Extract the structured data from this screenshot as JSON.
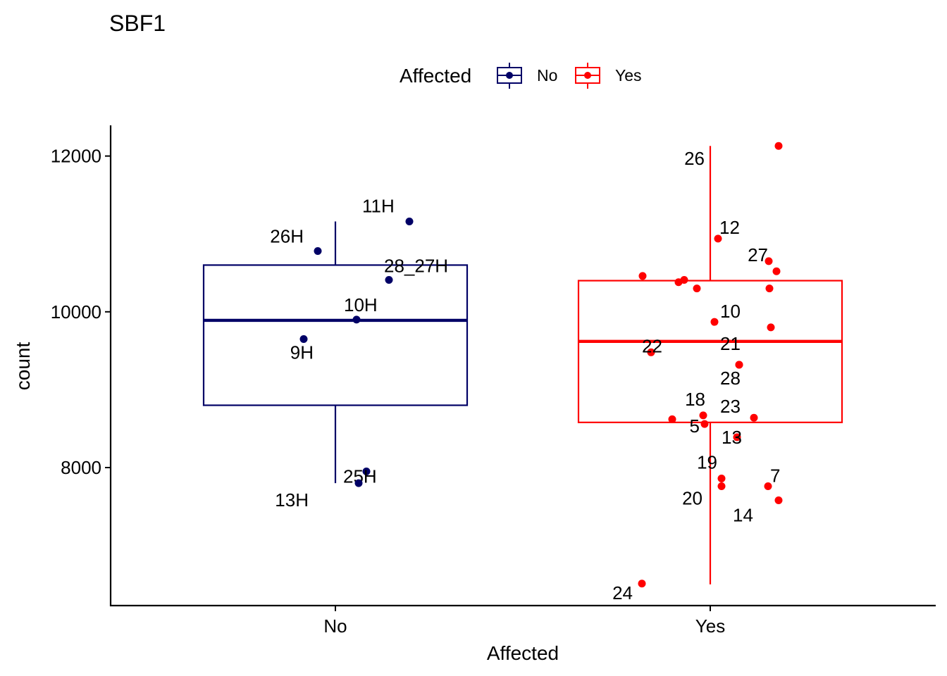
{
  "chart_data": {
    "type": "box",
    "title": "SBF1",
    "xlabel": "Affected",
    "ylabel": "count",
    "categories": [
      "No",
      "Yes"
    ],
    "ylim": [
      6240,
      12400
    ],
    "yticks": [
      8000,
      10000,
      12000
    ],
    "ytick_labels": [
      "8000",
      "10000",
      "12000"
    ],
    "legend": {
      "title": "Affected",
      "position": "top",
      "entries": [
        {
          "label": "No",
          "color": "#000066"
        },
        {
          "label": "Yes",
          "color": "#ff0000"
        }
      ]
    },
    "grid": false,
    "series": [
      {
        "category": "No",
        "color": "#000066",
        "box": {
          "lower_whisker": 7800,
          "q1": 8800,
          "median": 9890,
          "q3": 10600,
          "upper_whisker": 11160
        },
        "points": [
          {
            "label": "11H",
            "y": 11160
          },
          {
            "label": "26H",
            "y": 10780
          },
          {
            "label": "28_27H",
            "y": 10410
          },
          {
            "label": "10H",
            "y": 9900
          },
          {
            "label": "9H",
            "y": 9650
          },
          {
            "label": "25H",
            "y": 7950
          },
          {
            "label": "13H",
            "y": 7800
          }
        ]
      },
      {
        "category": "Yes",
        "color": "#ff0000",
        "box": {
          "lower_whisker": 6500,
          "q1": 8580,
          "median": 9620,
          "q3": 10400,
          "upper_whisker": 12130
        },
        "points": [
          {
            "label": "26",
            "y": 12130
          },
          {
            "label": "12",
            "y": 10940
          },
          {
            "label": "27",
            "y": 10650
          },
          {
            "label": "",
            "y": 10520
          },
          {
            "label": "",
            "y": 10460
          },
          {
            "label": "",
            "y": 10410
          },
          {
            "label": "",
            "y": 10380
          },
          {
            "label": "",
            "y": 10300
          },
          {
            "label": "",
            "y": 10300
          },
          {
            "label": "10",
            "y": 9870
          },
          {
            "label": "",
            "y": 9800
          },
          {
            "label": "22",
            "y": 9480
          },
          {
            "label": "21",
            "y": 9320
          },
          {
            "label": "28",
            "y": 9320
          },
          {
            "label": "18",
            "y": 8670
          },
          {
            "label": "23",
            "y": 8640
          },
          {
            "label": "",
            "y": 8620
          },
          {
            "label": "5",
            "y": 8560
          },
          {
            "label": "13",
            "y": 8390
          },
          {
            "label": "19",
            "y": 7860
          },
          {
            "label": "7",
            "y": 7760
          },
          {
            "label": "20",
            "y": 7760
          },
          {
            "label": "14",
            "y": 7580
          },
          {
            "label": "24",
            "y": 6510
          }
        ]
      }
    ]
  }
}
